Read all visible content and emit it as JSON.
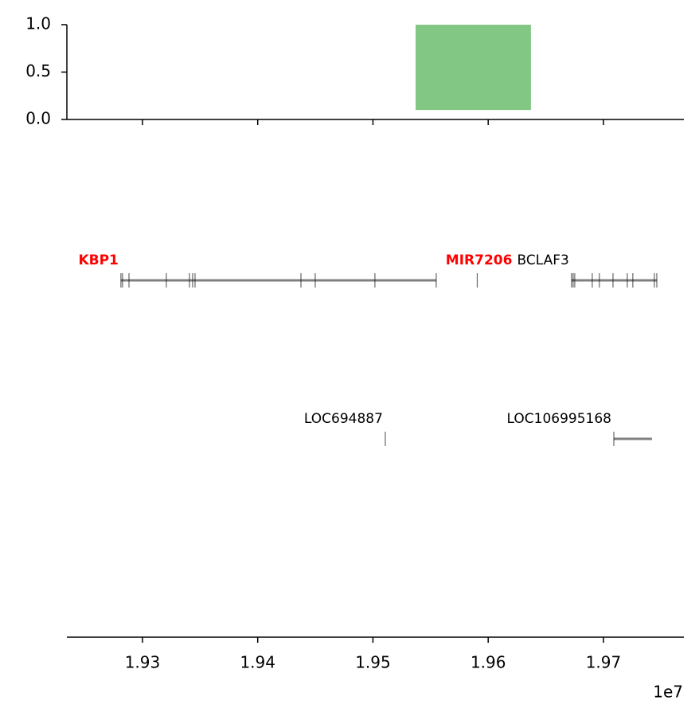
{
  "chart_data": [
    {
      "type": "bar",
      "x_start": [
        19537000
      ],
      "x_end": [
        19637100
      ],
      "bottom": [
        0.1
      ],
      "values": [
        1.0
      ],
      "color": "#83c784",
      "xlim": [
        19234400,
        19769800
      ],
      "xticks": [
        19300000,
        19400000,
        19500000,
        19600000,
        19700000
      ],
      "ylim": [
        0,
        1
      ],
      "yticks": [
        {
          "value": 0,
          "label": "0.0"
        },
        {
          "value": 0.5,
          "label": "0.5"
        },
        {
          "value": 1,
          "label": "1.0"
        }
      ]
    },
    {
      "type": "gene-track",
      "xlim": [
        19234400,
        19769800
      ],
      "xticks": [
        {
          "value": 19300000,
          "label": "1.93"
        },
        {
          "value": 19400000,
          "label": "1.94"
        },
        {
          "value": 19500000,
          "label": "1.95"
        },
        {
          "value": 19600000,
          "label": "1.96"
        },
        {
          "value": 19700000,
          "label": "1.97"
        }
      ],
      "x_offset_label": "1e7",
      "rows": [
        [
          {
            "name": "KBP1",
            "color": "#ff0000",
            "bold": true,
            "start": 19281300,
            "end": 19554900,
            "exons": [
              19281300,
              19282700,
              19288300,
              19320700,
              19340800,
              19343500,
              19345600,
              19437500,
              19449900,
              19501700,
              19554900
            ]
          },
          {
            "name": "MIR7206",
            "color": "#ff0000",
            "bold": true,
            "start": 19590500,
            "end": 19590500,
            "exons": [
              19590500
            ]
          },
          {
            "name": "BCLAF3",
            "color": "#000000",
            "bold": false,
            "start": 19672300,
            "end": 19746300,
            "exons": [
              19672300,
              19673700,
              19675100,
              19690300,
              19696500,
              19708300,
              19720700,
              19725500,
              19744200,
              19746300
            ]
          }
        ],
        [
          {
            "name": "LOC694887",
            "color": "#000000",
            "bold": false,
            "start": 19510700,
            "end": 19510700,
            "exons": [
              19510700
            ]
          },
          {
            "name": "LOC106995168",
            "color": "#000000",
            "bold": false,
            "start": 19709000,
            "end": 19742100,
            "exons": [
              19709000
            ]
          }
        ]
      ]
    }
  ]
}
